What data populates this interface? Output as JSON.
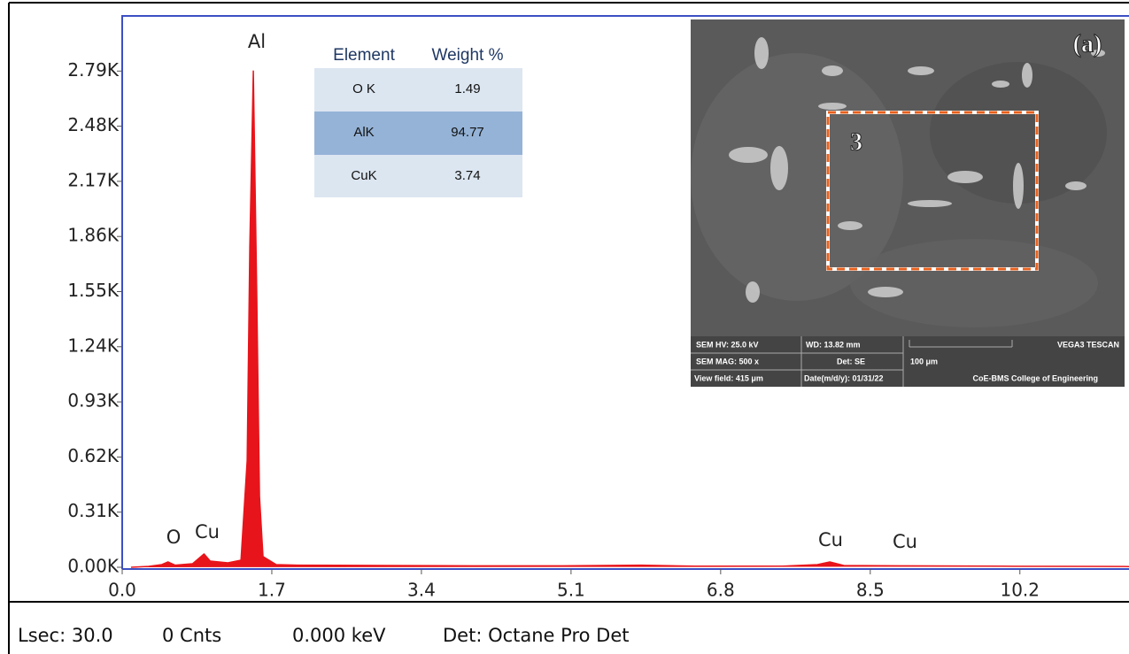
{
  "chart_data": {
    "type": "line",
    "x": [
      0.1,
      0.3,
      0.45,
      0.52,
      0.6,
      0.8,
      0.93,
      1.0,
      1.2,
      1.35,
      1.42,
      1.45,
      1.49,
      1.53,
      1.56,
      1.6,
      1.75,
      2.0,
      3.0,
      4.0,
      5.0,
      5.9,
      6.5,
      7.5,
      7.9,
      8.04,
      8.2,
      8.9,
      10.0,
      11.0,
      11.44
    ],
    "series": [
      {
        "color": "#e8141b",
        "values": [
          0,
          5,
          15,
          30,
          12,
          20,
          75,
          35,
          25,
          40,
          600,
          1800,
          2790,
          1500,
          400,
          60,
          15,
          12,
          10,
          8,
          8,
          12,
          6,
          6,
          15,
          30,
          10,
          8,
          6,
          5,
          4
        ]
      }
    ],
    "xlim": [
      0,
      11.44
    ],
    "ylim": [
      0,
      3100
    ],
    "xticks": [
      {
        "value": 0,
        "label": "0.0"
      },
      1.7,
      3.4,
      5.1,
      6.8,
      8.5,
      10.2
    ],
    "yticks": [
      {
        "value": 0,
        "label": "0.00K"
      },
      {
        "value": 310,
        "label": "0.31K"
      },
      {
        "value": 620,
        "label": "0.62K"
      },
      {
        "value": 930,
        "label": "0.93K"
      },
      {
        "value": 1240,
        "label": "1.24K"
      },
      {
        "value": 1550,
        "label": "1.55K"
      },
      {
        "value": 1860,
        "label": "1.86K"
      },
      {
        "value": 2170,
        "label": "2.17K"
      },
      {
        "value": 2480,
        "label": "2.48K"
      },
      {
        "value": 2790,
        "label": "2.79K"
      }
    ],
    "axis_color": "#3c4fc4",
    "annotations": [
      "Al",
      "O",
      "Cu",
      "Cu",
      "Cu"
    ]
  },
  "table": {
    "header": [
      "Element",
      "Weight %"
    ],
    "rows": [
      [
        "O K",
        1.49
      ],
      [
        "AlK",
        94.77
      ],
      [
        "CuK",
        3.74
      ]
    ]
  },
  "inset_image": {
    "panel_label": "(a)",
    "region_label": "3",
    "info": [
      "SEM HV: 25.0 kV",
      "WD: 13.82 mm",
      "VEGA3 TESCAN",
      "SEM MAG: 500 x",
      "Det: SE",
      "100 μm",
      "View field: 415 μm",
      "Date(m/d/y): 01/31/22",
      "CoE-BMS College of Engineering"
    ]
  },
  "status_bar": [
    "Lsec: 30.0",
    "0 Cnts",
    "0.000 keV",
    "Det: Octane Pro Det"
  ]
}
